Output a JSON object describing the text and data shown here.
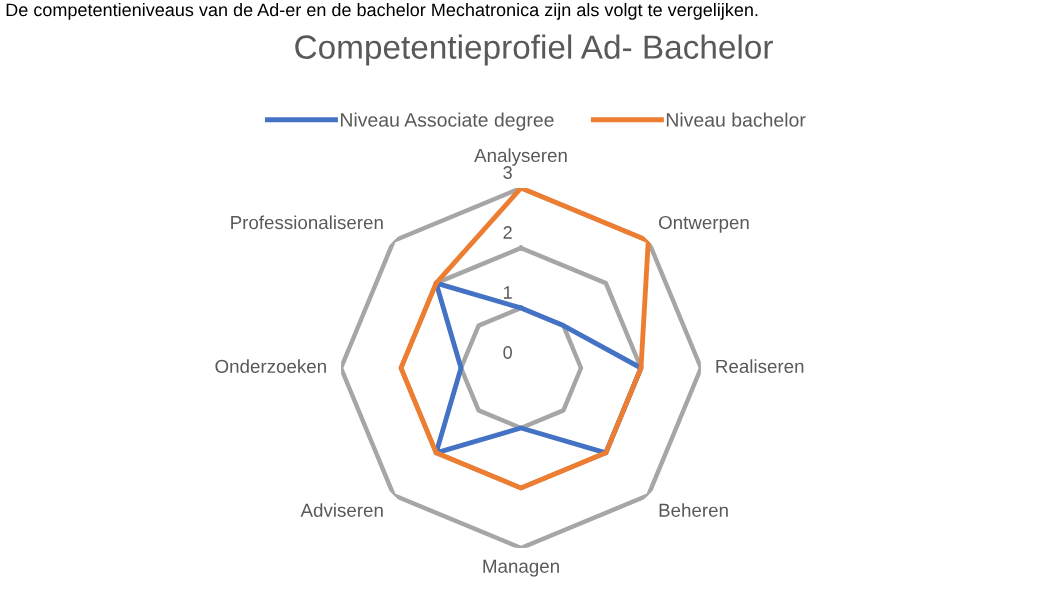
{
  "chart_data": {
    "type": "radar",
    "title": "Competentieprofiel Ad- Bachelor",
    "annotations": [
      "De competentieniveaus van de Ad-er en de bachelor Mechatronica zijn als volgt te vergelijken."
    ],
    "categories": [
      "Analyseren",
      "Ontwerpen",
      "Realiseren",
      "Beheren",
      "Managen",
      "Adviseren",
      "Onderzoeken",
      "Professionaliseren"
    ],
    "series": [
      {
        "name": "Niveau Associate degree",
        "color": "#4472c4",
        "values": [
          1,
          1,
          2,
          2,
          1,
          2,
          1,
          2
        ]
      },
      {
        "name": "Niveau bachelor",
        "color": "#ed7d31",
        "values": [
          3,
          3,
          2,
          2,
          2,
          2,
          2,
          2
        ]
      }
    ],
    "ylim": [
      0,
      3
    ],
    "yticks": [
      0,
      1,
      2,
      3
    ],
    "grid": true,
    "legend": "top",
    "marker": "none",
    "line_style": "solid"
  }
}
